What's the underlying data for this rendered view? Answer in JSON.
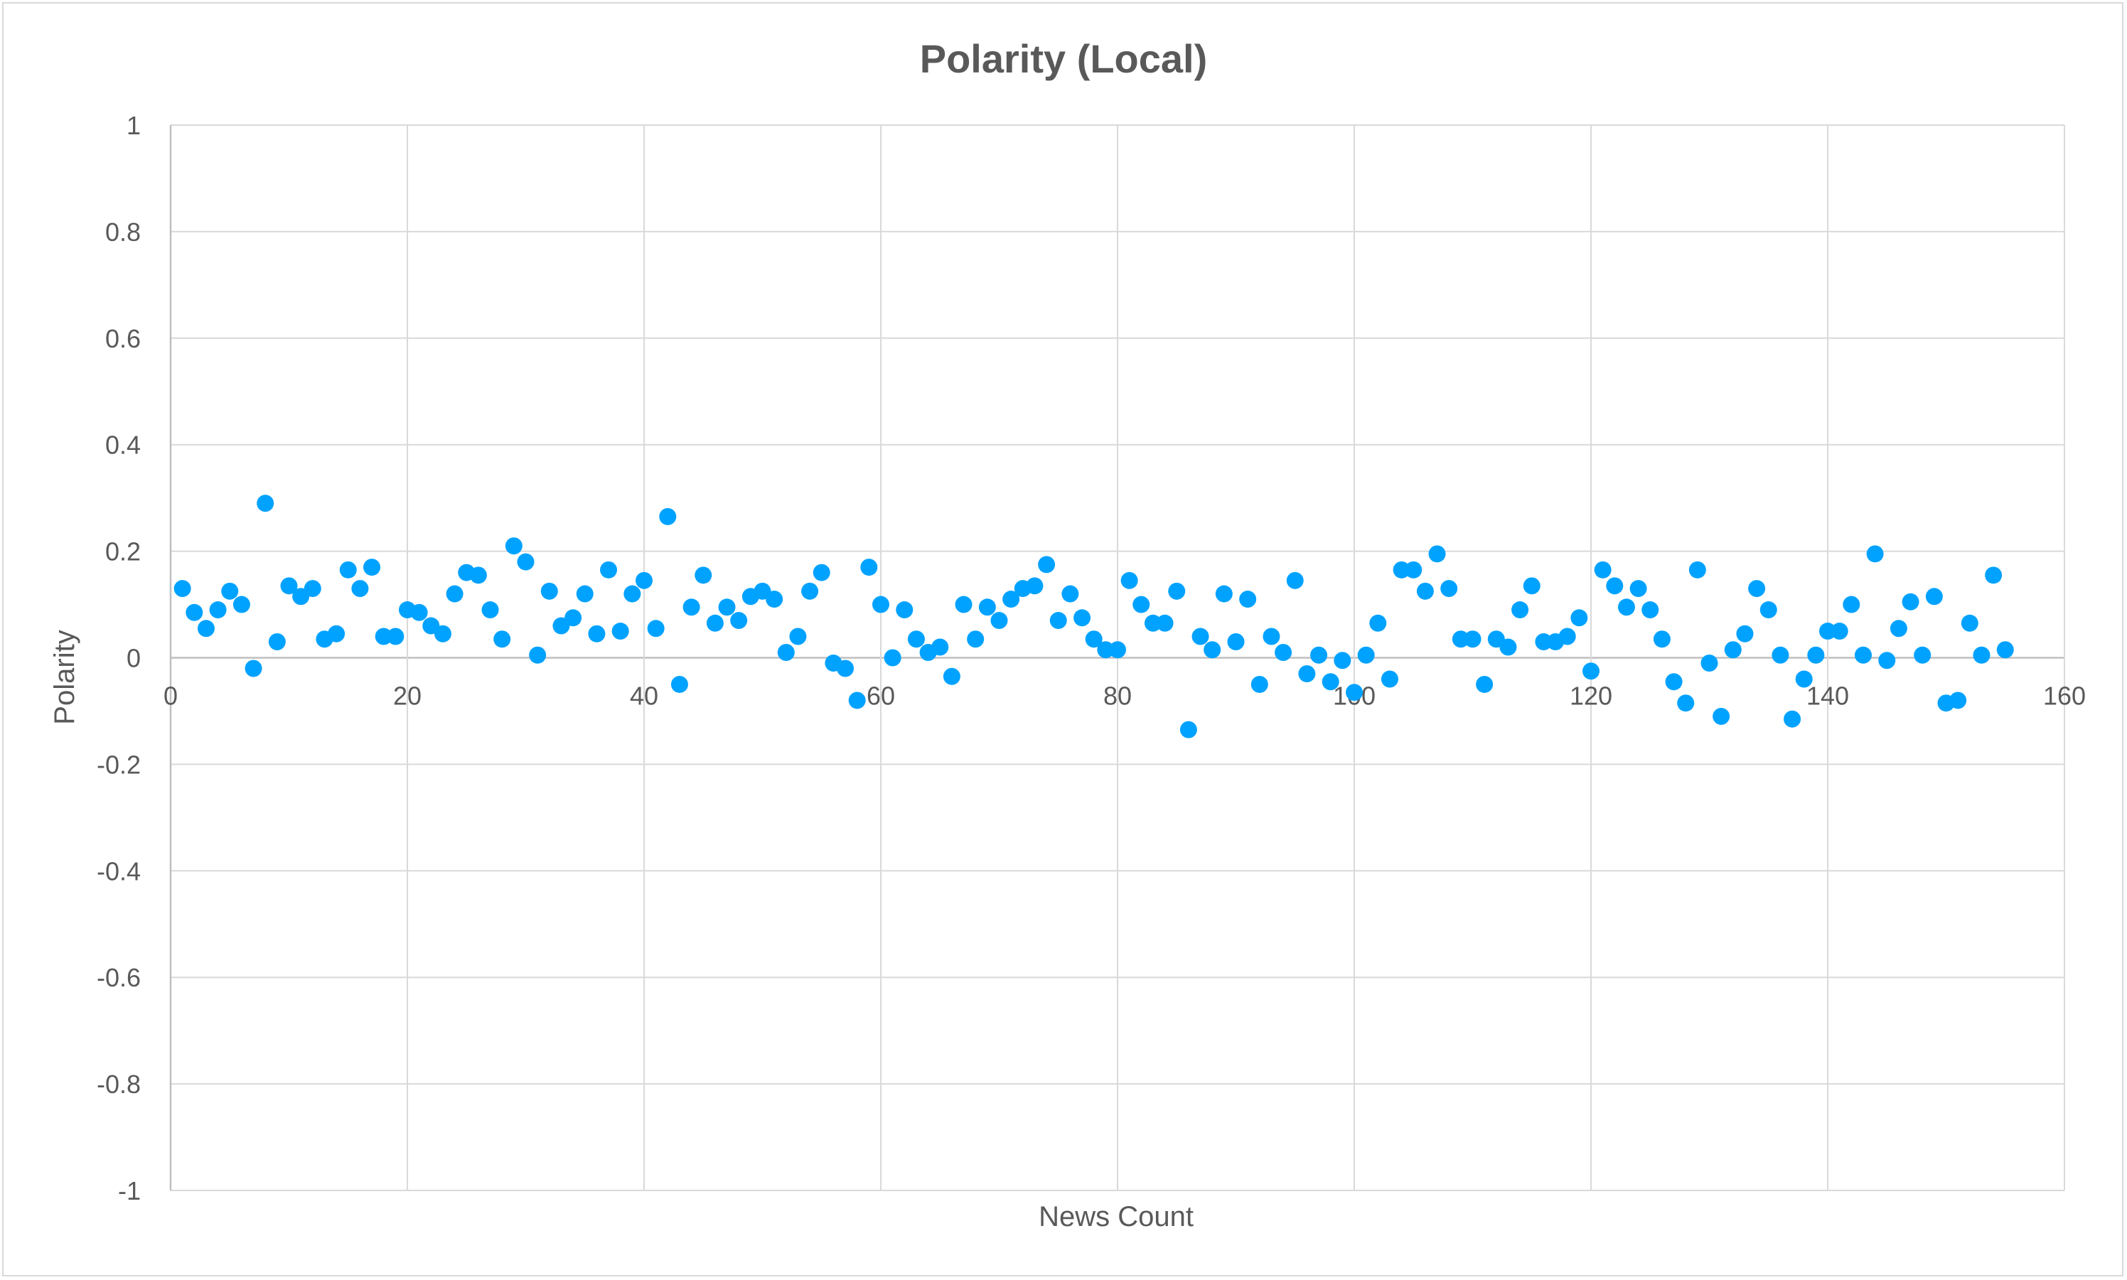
{
  "chart_data": {
    "type": "scatter",
    "title": "Polarity (Local)",
    "xlabel": "News Count",
    "ylabel": "Polarity",
    "xlim": [
      0,
      160
    ],
    "ylim": [
      -1,
      1
    ],
    "x_ticks": [
      0,
      20,
      40,
      60,
      80,
      100,
      120,
      140,
      160
    ],
    "y_ticks": [
      1,
      0.8,
      0.6,
      0.4,
      0.2,
      0,
      -0.2,
      -0.4,
      -0.6,
      -0.8,
      -1
    ],
    "x_tick_labels": [
      "0",
      "20",
      "40",
      "60",
      "80",
      "100",
      "120",
      "140",
      "160"
    ],
    "y_tick_labels": [
      "1",
      "0.8",
      "0.6",
      "0.4",
      "0.2",
      "0",
      "-0.2",
      "-0.4",
      "-0.6",
      "-0.8",
      "-1"
    ],
    "grid": true,
    "marker_color": "#00a2ff",
    "series": [
      {
        "x": [
          1,
          2,
          3,
          4,
          5,
          6,
          7,
          8,
          9,
          10,
          11,
          12,
          13,
          14,
          15,
          16,
          17,
          18,
          19,
          20,
          21,
          22,
          23,
          24,
          25,
          26,
          27,
          28,
          29,
          30,
          31,
          32,
          33,
          34,
          35,
          36,
          37,
          38,
          39,
          40,
          41,
          42,
          43,
          44,
          45,
          46,
          47,
          48,
          49,
          50,
          51,
          52,
          53,
          54,
          55,
          56,
          57,
          58,
          59,
          60,
          61,
          62,
          63,
          64,
          65,
          66,
          67,
          68,
          69,
          70,
          71,
          72,
          73,
          74,
          75,
          76,
          77,
          78,
          79,
          80,
          81,
          82,
          83,
          84,
          85,
          86,
          87,
          88,
          89,
          90,
          91,
          92,
          93,
          94,
          95,
          96,
          97,
          98,
          99,
          100,
          101,
          102,
          103,
          104,
          105,
          106,
          107,
          108,
          109,
          110,
          111,
          112,
          113,
          114,
          115,
          116,
          117,
          118,
          119,
          120,
          121,
          122,
          123,
          124,
          125,
          126,
          127,
          128,
          129,
          130,
          131,
          132,
          133,
          134,
          135,
          136,
          137,
          138,
          139,
          140,
          141,
          142,
          143,
          144,
          145,
          146,
          147,
          148,
          149,
          150,
          151,
          152,
          153,
          154,
          155
        ],
        "y": [
          0.13,
          0.085,
          0.055,
          0.09,
          0.125,
          0.1,
          -0.02,
          0.29,
          0.03,
          0.135,
          0.115,
          0.13,
          0.035,
          0.045,
          0.165,
          0.13,
          0.17,
          0.04,
          0.04,
          0.09,
          0.085,
          0.06,
          0.045,
          0.12,
          0.16,
          0.155,
          0.09,
          0.035,
          0.21,
          0.18,
          0.005,
          0.125,
          0.06,
          0.075,
          0.12,
          0.045,
          0.165,
          0.05,
          0.12,
          0.145,
          0.055,
          0.265,
          -0.05,
          0.095,
          0.155,
          0.065,
          0.095,
          0.07,
          0.115,
          0.125,
          0.11,
          0.01,
          0.04,
          0.125,
          0.16,
          -0.01,
          -0.02,
          -0.08,
          0.17,
          0.1,
          0,
          0.09,
          0.035,
          0.01,
          0.02,
          -0.035,
          0.1,
          0.035,
          0.095,
          0.07,
          0.11,
          0.13,
          0.135,
          0.175,
          0.07,
          0.12,
          0.075,
          0.035,
          0.015,
          0.015,
          0.145,
          0.1,
          0.065,
          0.065,
          0.125,
          -0.135,
          0.04,
          0.015,
          0.12,
          0.03,
          0.11,
          -0.05,
          0.04,
          0.01,
          0.145,
          -0.03,
          0.005,
          -0.045,
          -0.005,
          -0.065,
          0.005,
          0.065,
          -0.04,
          0.165,
          0.165,
          0.125,
          0.195,
          0.13,
          0.035,
          0.035,
          -0.05,
          0.035,
          0.02,
          0.09,
          0.135,
          0.03,
          0.03,
          0.04,
          0.075,
          -0.025,
          0.165,
          0.135,
          0.095,
          0.13,
          0.09,
          0.035,
          -0.045,
          -0.085,
          0.165,
          -0.01,
          -0.11,
          0.015,
          0.045,
          0.13,
          0.09,
          0.005,
          -0.115,
          -0.04,
          0.005,
          0.05,
          0.05,
          0.1,
          0.005,
          0.195,
          -0.005,
          0.055,
          0.105,
          0.005,
          0.115,
          -0.085,
          -0.08,
          0.065,
          0.005,
          0.155,
          0.015
        ]
      }
    ]
  }
}
